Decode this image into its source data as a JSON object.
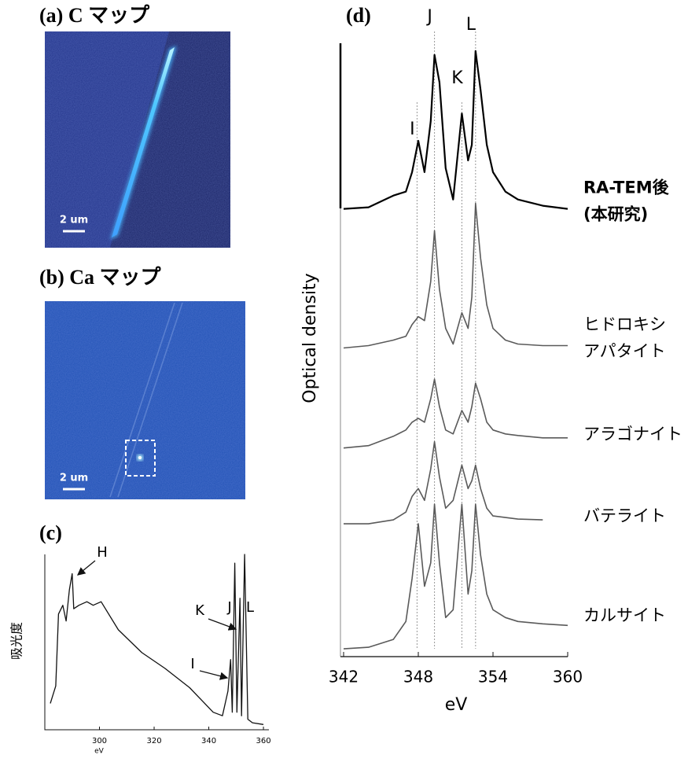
{
  "image_panels": [
    {
      "title": "(a) C マップ",
      "scale_label": "2 um"
    },
    {
      "title": "(b) Ca マップ",
      "scale_label": "2 um"
    }
  ],
  "chart_data": [
    {
      "type": "line",
      "title": "(c)",
      "x_label": "eV",
      "y_label": "吸光度",
      "color": "#111111",
      "x": [
        282,
        284,
        285,
        286.6,
        287.8,
        289,
        290,
        290.6,
        292.5,
        295.4,
        297.7,
        300.6,
        306.9,
        315.5,
        324,
        333,
        341.6,
        345,
        347,
        348,
        348.6,
        349.5,
        350.3,
        351.4,
        352,
        353.1,
        354.3,
        356,
        360
      ],
      "values": [
        15,
        25,
        66,
        71,
        62,
        80,
        89,
        69,
        71,
        73,
        71,
        73,
        57,
        44,
        35,
        24,
        10,
        8,
        22,
        40,
        10,
        95,
        10,
        75,
        8,
        100,
        6,
        4,
        3
      ],
      "xlim": [
        280,
        362
      ],
      "ylim": [
        0,
        100
      ],
      "xticks": [
        300,
        320,
        340,
        360
      ],
      "annotations": [
        "H",
        "J",
        "L",
        "K",
        "I"
      ]
    },
    {
      "type": "line",
      "title": "(d)",
      "x_label": "eV",
      "y_label": "Optical density",
      "x": [
        342,
        344,
        346,
        347,
        347.5,
        348,
        348.5,
        349,
        349.3,
        349.7,
        350.2,
        350.8,
        351.5,
        352,
        352.3,
        352.6,
        353,
        353.5,
        354,
        355,
        356,
        358,
        360
      ],
      "series": [
        {
          "name": [
            "RA-TEM後",
            "(本研究)"
          ],
          "color": "#000000",
          "values": [
            573,
            575,
            590,
            595,
            620,
            660,
            620,
            685,
            770,
            735,
            625,
            585,
            695,
            635,
            655,
            775,
            725,
            655,
            620,
            595,
            585,
            577,
            573
          ]
        },
        {
          "name": [
            "ヒドロキシ",
            "アパタイト"
          ],
          "color": "#5a5a5a",
          "values": [
            395,
            398,
            405,
            410,
            425,
            435,
            430,
            480,
            545,
            470,
            420,
            400,
            440,
            420,
            460,
            580,
            510,
            450,
            420,
            405,
            400,
            398,
            398
          ]
        },
        {
          "name": [
            "アラゴナイト"
          ],
          "color": "#5a5a5a",
          "values": [
            267,
            270,
            282,
            290,
            300,
            305,
            300,
            330,
            355,
            320,
            290,
            285,
            315,
            300,
            320,
            350,
            330,
            300,
            290,
            285,
            283,
            280,
            280
          ]
        },
        {
          "name": [
            "バテライト"
          ],
          "color": "#5a5a5a",
          "values": [
            170,
            170,
            175,
            185,
            205,
            215,
            200,
            240,
            275,
            230,
            190,
            200,
            245,
            215,
            225,
            245,
            215,
            190,
            180,
            178,
            176,
            175,
            null
          ]
        },
        {
          "name": [
            "カルサイト"
          ],
          "color": "#5a5a5a",
          "values": [
            10,
            12,
            22,
            45,
            100,
            170,
            90,
            120,
            195,
            120,
            50,
            60,
            195,
            80,
            110,
            195,
            130,
            80,
            60,
            50,
            45,
            42,
            40
          ]
        }
      ],
      "xlim": [
        342,
        360
      ],
      "ylim": [
        0,
        800
      ],
      "xticks": [
        342,
        348,
        354,
        360
      ],
      "peaks": [
        {
          "label": "I",
          "x": 347.9
        },
        {
          "label": "J",
          "x": 349.3
        },
        {
          "label": "K",
          "x": 351.5
        },
        {
          "label": "L",
          "x": 352.6
        }
      ]
    }
  ]
}
